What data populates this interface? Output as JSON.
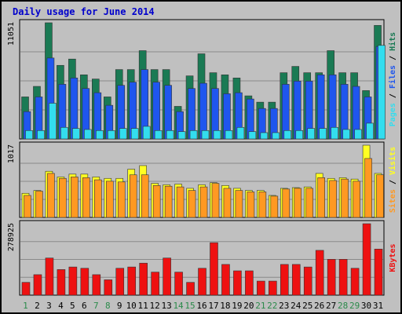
{
  "title": "Daily usage for June 2014",
  "chart_data": {
    "type": "bar",
    "title": "Daily usage for June 2014",
    "categories": [
      "1",
      "2",
      "3",
      "4",
      "5",
      "6",
      "7",
      "8",
      "9",
      "10",
      "11",
      "12",
      "13",
      "14",
      "15",
      "16",
      "17",
      "18",
      "19",
      "20",
      "21",
      "22",
      "23",
      "24",
      "25",
      "26",
      "27",
      "28",
      "29",
      "30",
      "31"
    ],
    "weekend_days": [
      "1",
      "7",
      "8",
      "14",
      "15",
      "21",
      "22",
      "28",
      "29"
    ],
    "panels": [
      {
        "id": "hits",
        "y_max": 11051,
        "y_tick_label": "11051",
        "ylabel_parts": [
          "Pages",
          "Files",
          "Hits"
        ],
        "series": [
          {
            "name": "Hits",
            "color": "#1a7a54",
            "values": [
              4000,
              5000,
              11051,
              7000,
              7600,
              6100,
              5700,
              4000,
              6600,
              6600,
              8400,
              6600,
              6600,
              3100,
              6000,
              8100,
              6300,
              6100,
              5800,
              4100,
              3500,
              3500,
              6300,
              6900,
              6300,
              6300,
              8400,
              6300,
              6300,
              4600,
              10800
            ]
          },
          {
            "name": "Files",
            "color": "#1f56ee",
            "values": [
              2600,
              4000,
              7700,
              5200,
              5800,
              4800,
              4400,
              3200,
              5100,
              5400,
              6600,
              5400,
              5100,
              2600,
              4800,
              5300,
              4800,
              4300,
              4400,
              3800,
              2900,
              2900,
              5200,
              5500,
              5500,
              6100,
              6100,
              5200,
              5000,
              4000,
              8800
            ]
          },
          {
            "name": "Pages",
            "color": "#33ddee",
            "values": [
              800,
              800,
              3400,
              1100,
              1000,
              900,
              800,
              800,
              1000,
              1000,
              1200,
              800,
              800,
              700,
              800,
              800,
              800,
              800,
              1100,
              700,
              600,
              600,
              800,
              800,
              1000,
              1000,
              1100,
              900,
              900,
              1500,
              8900
            ]
          }
        ]
      },
      {
        "id": "visits",
        "y_max": 1017,
        "y_tick_label": "1017",
        "ylabel_parts": [
          "Sites",
          "Visits"
        ],
        "series": [
          {
            "name": "Visits",
            "color": "#ffff22",
            "values": [
              340,
              380,
              650,
              570,
              610,
              610,
              570,
              550,
              550,
              680,
              730,
              480,
              460,
              470,
              410,
              460,
              490,
              450,
              410,
              380,
              380,
              310,
              410,
              420,
              430,
              620,
              550,
              560,
              540,
              1017,
              620
            ]
          },
          {
            "name": "Sites",
            "color": "#ff9922",
            "values": [
              310,
              370,
              620,
              550,
              570,
              560,
              530,
              510,
              500,
              600,
              600,
              450,
              440,
              430,
              380,
              430,
              480,
              410,
              380,
              360,
              360,
              300,
              400,
              410,
              410,
              560,
              520,
              540,
              510,
              830,
              600
            ]
          }
        ]
      },
      {
        "id": "kbytes",
        "y_max": 278925,
        "y_tick_label": "278925",
        "ylabel_parts": [
          "KBytes"
        ],
        "series": [
          {
            "name": "KBytes",
            "color": "#ee1111",
            "values": [
              50000,
              80000,
              145000,
              100000,
              110000,
              105000,
              80000,
              60000,
              105000,
              110000,
              125000,
              90000,
              145000,
              90000,
              50000,
              105000,
              205000,
              120000,
              95000,
              95000,
              55000,
              55000,
              120000,
              120000,
              110000,
              175000,
              140000,
              140000,
              105000,
              278925,
              180000
            ]
          }
        ]
      }
    ]
  }
}
